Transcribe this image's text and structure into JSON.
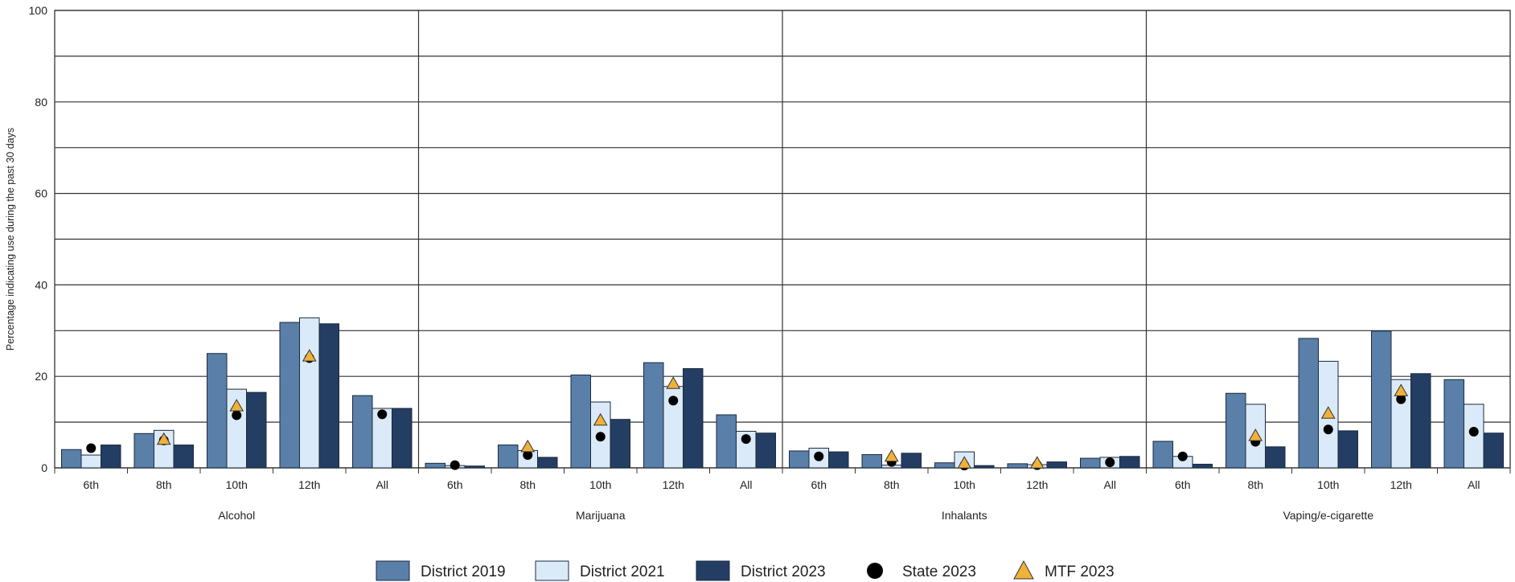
{
  "chart_data": {
    "type": "bar",
    "ylabel": "Percentage indicating use during the past 30 days",
    "xlabel": "",
    "title": "",
    "ylim": [
      0,
      100
    ],
    "yticks": [
      0,
      20,
      40,
      60,
      80,
      100
    ],
    "grid": true,
    "legend_position": "bottom",
    "groups": [
      "Alcohol",
      "Marijuana",
      "Inhalants",
      "Vaping/e-cigarette"
    ],
    "categories": [
      "6th",
      "8th",
      "10th",
      "12th",
      "All"
    ],
    "bar_series": [
      {
        "name": "District 2019",
        "color": "#5a7fa8",
        "values": [
          [
            4.0,
            7.5,
            25.0,
            31.8,
            15.8
          ],
          [
            1.0,
            5.0,
            20.3,
            23.0,
            11.6
          ],
          [
            3.7,
            2.9,
            1.1,
            0.9,
            2.1
          ],
          [
            5.8,
            16.3,
            28.3,
            29.9,
            19.3
          ]
        ]
      },
      {
        "name": "District 2021",
        "color": "#daeaf8",
        "values": [
          [
            2.8,
            8.2,
            17.2,
            32.8,
            13.0
          ],
          [
            0.5,
            3.8,
            14.4,
            17.8,
            8.0
          ],
          [
            4.3,
            0.6,
            3.5,
            0.7,
            2.3
          ],
          [
            2.5,
            13.9,
            23.3,
            19.3,
            13.9
          ]
        ]
      },
      {
        "name": "District 2023",
        "color": "#243d62",
        "values": [
          [
            5.0,
            5.0,
            16.5,
            31.5,
            13.0
          ],
          [
            0.4,
            2.3,
            10.6,
            21.7,
            7.6
          ],
          [
            3.5,
            3.2,
            0.5,
            1.3,
            2.5
          ],
          [
            0.8,
            4.6,
            8.1,
            20.6,
            7.6
          ]
        ]
      }
    ],
    "marker_series": [
      {
        "name": "State 2023",
        "marker": "circle",
        "color": "#000000",
        "values": [
          [
            4.3,
            6.0,
            11.5,
            24.0,
            11.7
          ],
          [
            0.6,
            2.8,
            6.8,
            14.7,
            6.3
          ],
          [
            2.5,
            1.3,
            0.5,
            0.6,
            1.2
          ],
          [
            2.5,
            5.7,
            8.4,
            15.0,
            7.9
          ]
        ]
      },
      {
        "name": "MTF 2023",
        "marker": "triangle",
        "color": "#f0b13a",
        "values": [
          [
            null,
            6.2,
            13.5,
            24.4,
            null
          ],
          [
            null,
            4.6,
            10.4,
            18.4,
            null
          ],
          [
            null,
            2.5,
            1.0,
            1.0,
            null
          ],
          [
            null,
            7.0,
            11.9,
            16.8,
            null
          ]
        ]
      }
    ]
  }
}
